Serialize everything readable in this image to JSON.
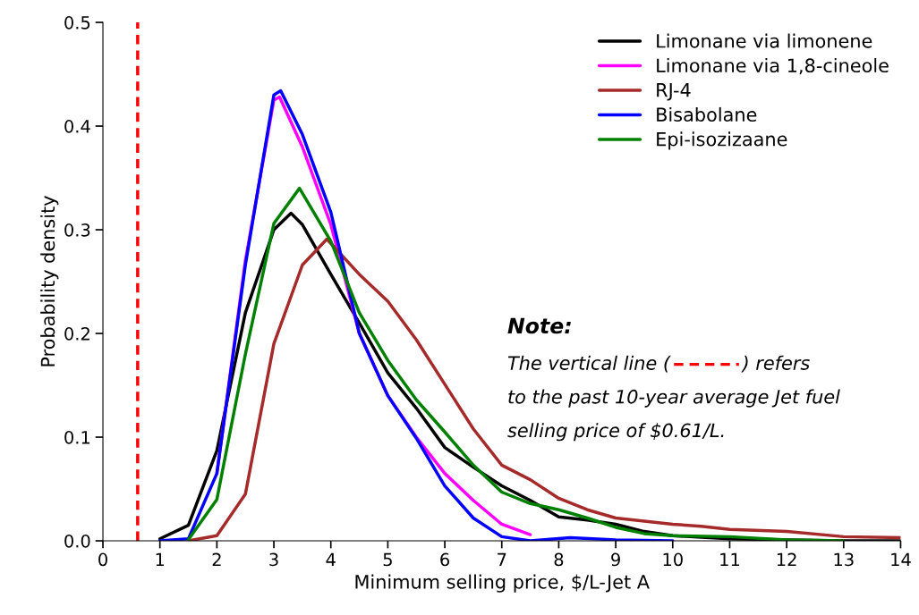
{
  "chart_data": {
    "type": "line",
    "xlabel": "Minimum selling price, $/L-Jet A",
    "ylabel": "Probability density",
    "xlim": [
      0,
      14
    ],
    "xticks": [
      0,
      1,
      2,
      3,
      4,
      5,
      6,
      7,
      8,
      9,
      10,
      11,
      12,
      13,
      14
    ],
    "ylim": [
      0,
      0.5
    ],
    "yticks": [
      {
        "value": 0,
        "label": "0.0"
      },
      0.1,
      0.2,
      0.3,
      0.4,
      0.5
    ],
    "grid": false,
    "legend": "top right",
    "marker": "none",
    "line_style": "solid",
    "series": [
      {
        "name": "Limonane via limonene",
        "color": "#000000",
        "x": [
          1.0,
          1.5,
          2.0,
          2.5,
          3.0,
          3.3,
          3.5,
          4.0,
          4.5,
          5.0,
          5.5,
          6.0,
          6.5,
          7.0,
          7.5,
          8.0,
          8.5,
          9.0,
          9.5,
          10.0,
          11.0,
          12.0,
          13.0,
          14.0
        ],
        "values": [
          0.002,
          0.015,
          0.087,
          0.22,
          0.3,
          0.316,
          0.305,
          0.257,
          0.21,
          0.162,
          0.128,
          0.09,
          0.071,
          0.053,
          0.039,
          0.023,
          0.02,
          0.016,
          0.009,
          0.005,
          0.002,
          0.001,
          0.0,
          0.0
        ]
      },
      {
        "name": "Limonane via 1,8-cineole",
        "color": "#ff00ff",
        "x": [
          2.0,
          2.5,
          3.0,
          3.1,
          3.5,
          4.0,
          4.5,
          5.0,
          5.5,
          6.0,
          6.5,
          7.0,
          7.5
        ],
        "values": [
          0.065,
          0.27,
          0.425,
          0.428,
          0.38,
          0.305,
          0.2,
          0.14,
          0.1,
          0.065,
          0.039,
          0.016,
          0.006
        ]
      },
      {
        "name": "RJ-4",
        "color": "#a52a2a",
        "x": [
          1.5,
          2.0,
          2.5,
          3.0,
          3.5,
          3.93,
          4.5,
          5.0,
          5.5,
          6.0,
          6.5,
          7.0,
          7.5,
          8.0,
          8.5,
          9.0,
          9.5,
          10.0,
          10.5,
          11.0,
          12.0,
          13.0,
          14.0
        ],
        "values": [
          0.0,
          0.005,
          0.045,
          0.19,
          0.266,
          0.291,
          0.257,
          0.231,
          0.194,
          0.151,
          0.108,
          0.073,
          0.059,
          0.041,
          0.03,
          0.022,
          0.019,
          0.016,
          0.014,
          0.011,
          0.009,
          0.004,
          0.003
        ]
      },
      {
        "name": "Bisabolane",
        "color": "#0000ff",
        "x": [
          1.0,
          1.5,
          2.0,
          2.5,
          3.0,
          3.12,
          3.5,
          4.0,
          4.5,
          5.0,
          5.5,
          6.0,
          6.5,
          7.0,
          7.5,
          8.2,
          9.0,
          10.0
        ],
        "values": [
          0.0,
          0.002,
          0.065,
          0.266,
          0.43,
          0.434,
          0.392,
          0.317,
          0.2,
          0.14,
          0.099,
          0.053,
          0.022,
          0.004,
          0.0,
          0.003,
          0.001,
          0.0
        ]
      },
      {
        "name": "Epi-isozizaane",
        "color": "#008000",
        "x": [
          1.5,
          2.0,
          2.5,
          3.0,
          3.45,
          4.0,
          4.5,
          5.0,
          5.5,
          6.0,
          6.5,
          7.0,
          7.5,
          8.0,
          8.5,
          9.0,
          9.5,
          10.0,
          11.0,
          12.0,
          13.0
        ],
        "values": [
          0.001,
          0.04,
          0.18,
          0.306,
          0.34,
          0.289,
          0.22,
          0.174,
          0.136,
          0.105,
          0.073,
          0.047,
          0.036,
          0.03,
          0.022,
          0.013,
          0.007,
          0.005,
          0.004,
          0.001,
          0.0
        ]
      }
    ],
    "ref_lines": [
      {
        "axis": "x",
        "value": 0.61,
        "color": "#ff0000",
        "line_style": "dashed"
      }
    ],
    "annotations": [
      "Note:",
      "The vertical line (",
      ") refers",
      "to the past 10-year average Jet fuel",
      "selling price of $0.61/L."
    ]
  }
}
